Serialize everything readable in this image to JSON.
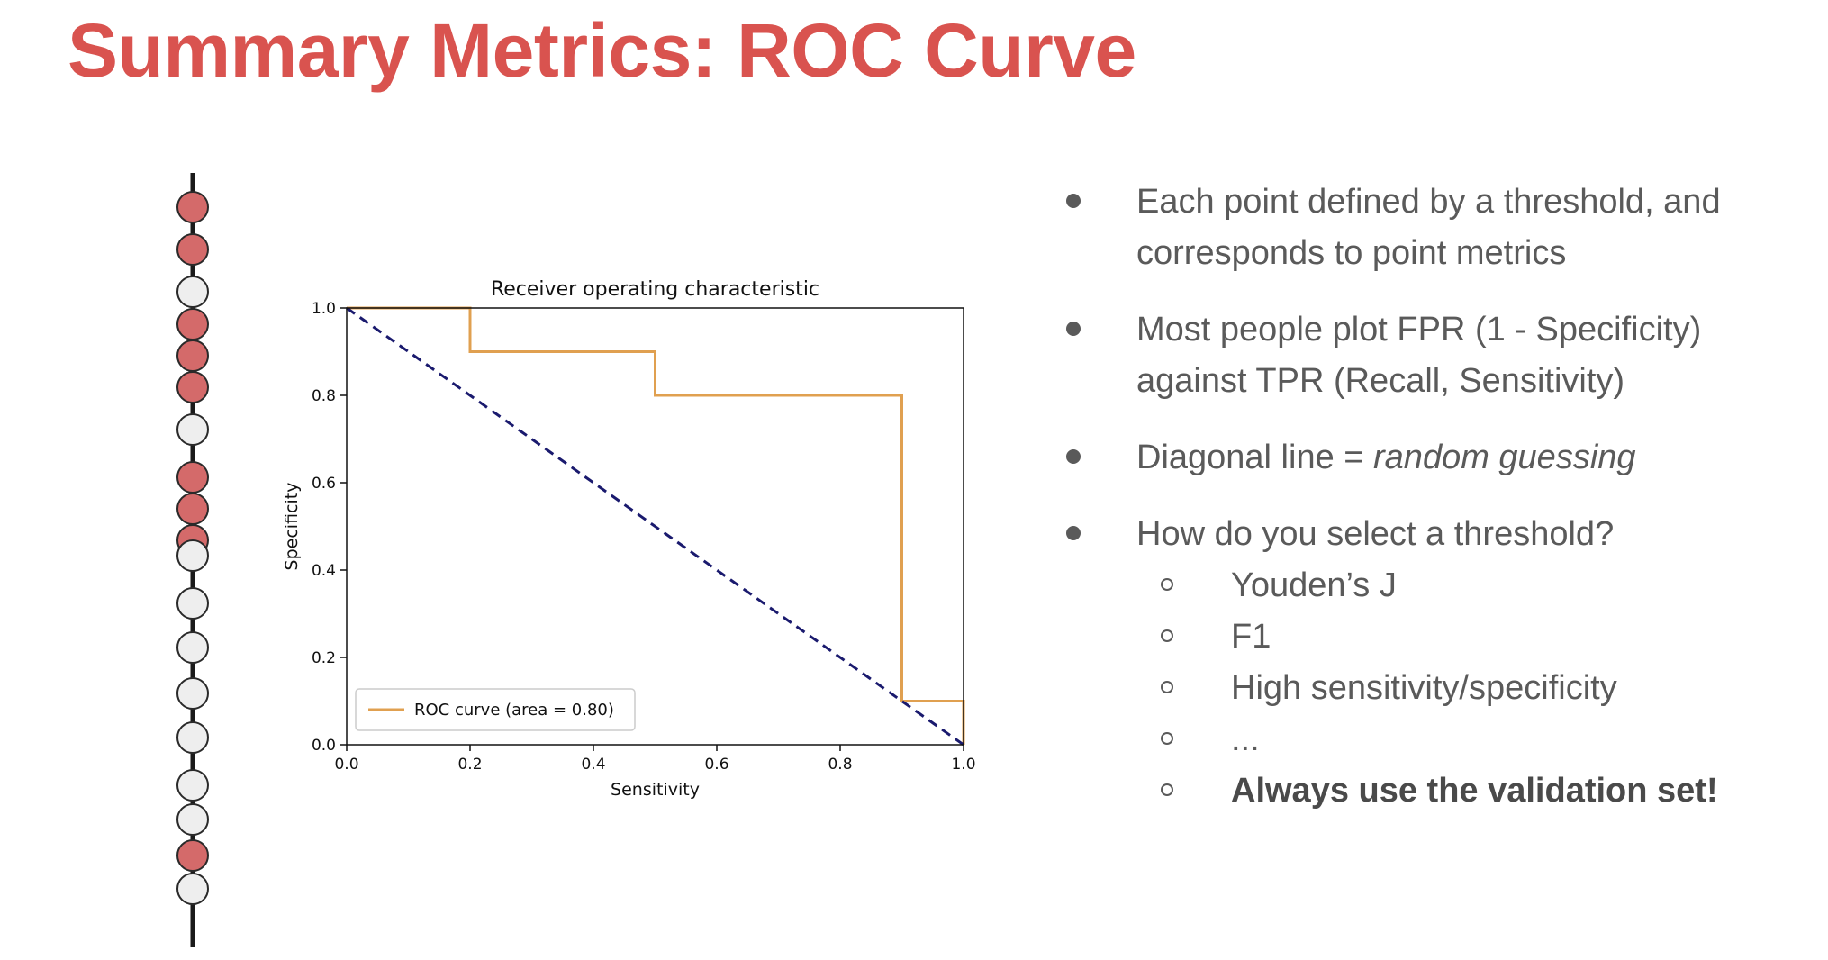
{
  "slide": {
    "title": "Summary Metrics: ROC Curve",
    "accent_color": "#d9534f"
  },
  "strip": {
    "dots": [
      "red",
      "red",
      "white",
      "red",
      "red",
      "red",
      "white",
      "red",
      "red",
      "red",
      "white",
      "white",
      "white",
      "white",
      "white",
      "white",
      "white",
      "red",
      "white"
    ],
    "colors": {
      "red": "#d46a6a",
      "white": "#eeeeee"
    }
  },
  "chart_data": {
    "type": "line",
    "title": "Receiver operating characteristic",
    "xlabel": "Sensitivity",
    "ylabel": "Specificity",
    "xlim": [
      0.0,
      1.0
    ],
    "ylim": [
      0.0,
      1.0
    ],
    "xticks": [
      "0.0",
      "0.2",
      "0.4",
      "0.6",
      "0.8",
      "1.0"
    ],
    "yticks": [
      "0.0",
      "0.2",
      "0.4",
      "0.6",
      "0.8",
      "1.0"
    ],
    "grid": false,
    "legend_position": "bottom-left",
    "series": [
      {
        "name": "ROC curve (area = 0.80)",
        "color": "#e0a050",
        "style": "solid",
        "x": [
          0.0,
          0.2,
          0.2,
          0.5,
          0.5,
          0.9,
          0.9,
          1.0,
          1.0
        ],
        "y": [
          1.0,
          1.0,
          0.9,
          0.9,
          0.8,
          0.8,
          0.1,
          0.1,
          0.0
        ]
      },
      {
        "color": "#1a1a6e",
        "style": "dashed",
        "x": [
          0.0,
          1.0
        ],
        "y": [
          1.0,
          0.0
        ]
      }
    ]
  },
  "bullets": {
    "b1": "Each point defined by a threshold, and corresponds to point metrics",
    "b2": "Most people plot FPR (1 - Specificity) against TPR (Recall, Sensitivity)",
    "b3_prefix": "Diagonal line = ",
    "b3_em": "random guessing",
    "b4": "How do you select a threshold?",
    "sub": [
      "Youden’s J",
      "F1",
      "High sensitivity/specificity",
      "..."
    ],
    "sub_bold": "Always use the validation set!"
  }
}
